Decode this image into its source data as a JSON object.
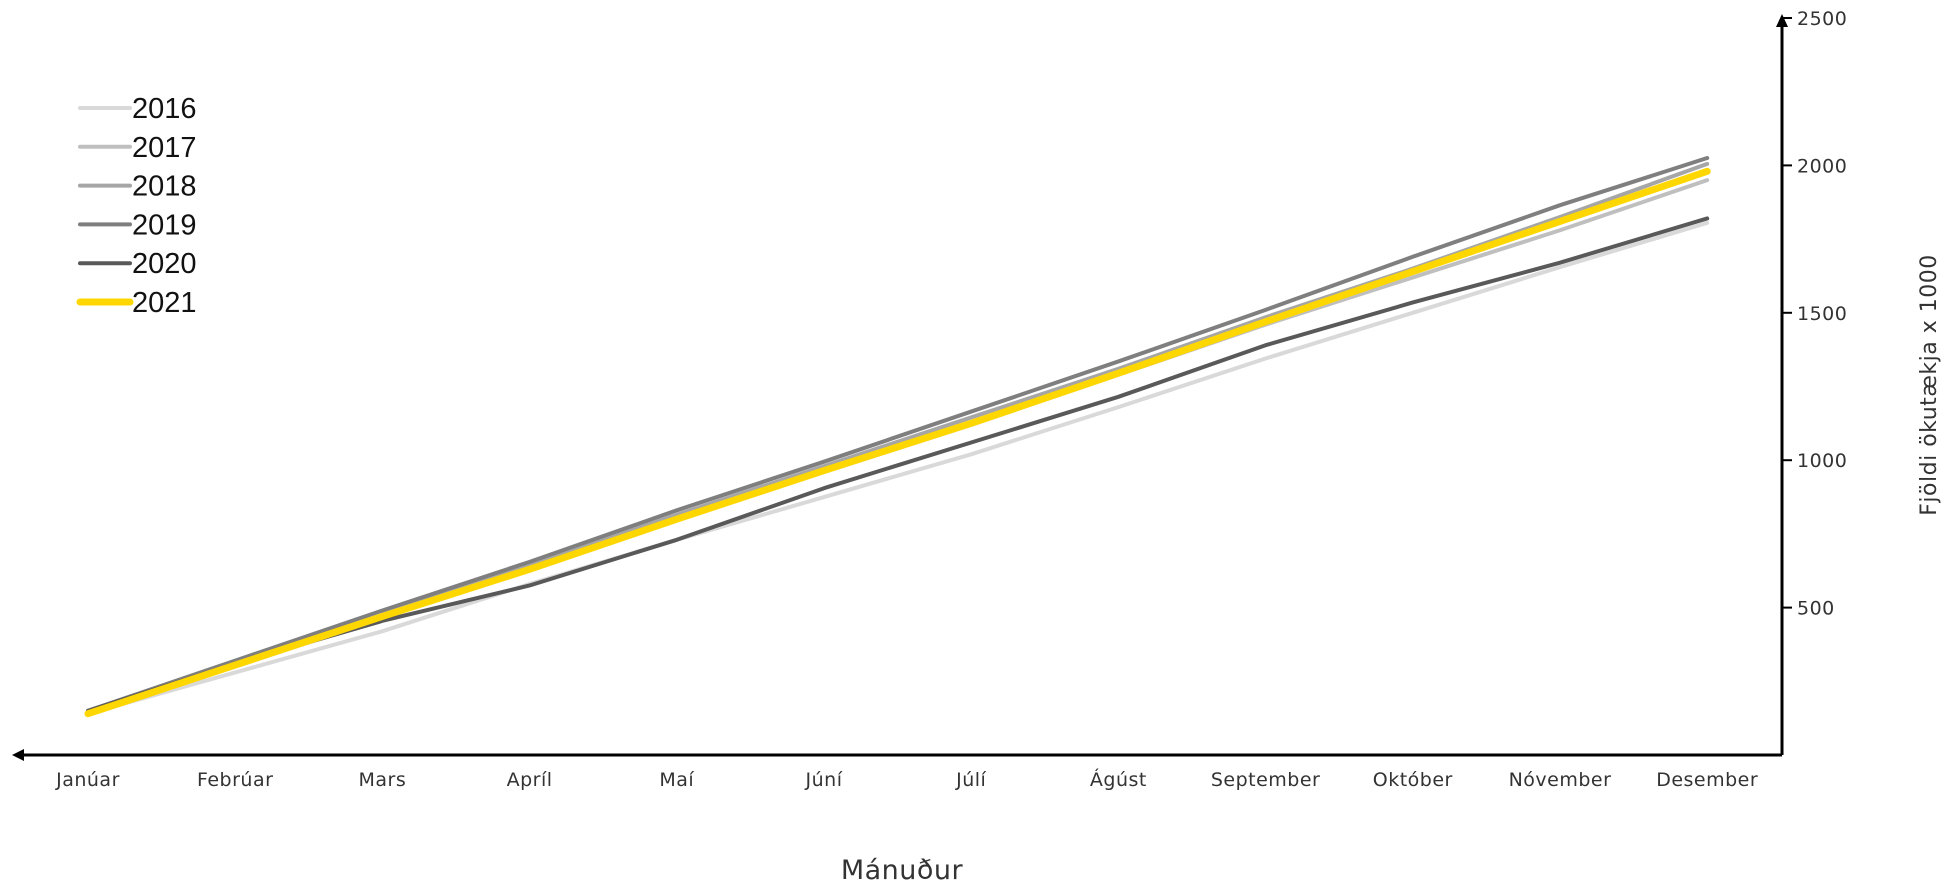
{
  "chart_data": {
    "type": "line",
    "title": "",
    "xlabel": "Mánuður",
    "ylabel": "Fjöldi ökutækja x 1000",
    "categories": [
      "Janúar",
      "Febrúar",
      "Mars",
      "Apríl",
      "Maí",
      "Júní",
      "Júlí",
      "Ágúst",
      "September",
      "Október",
      "Nóvember",
      "Desember"
    ],
    "y_ticks": [
      500,
      1000,
      1500,
      2000,
      2500
    ],
    "ylim": [
      0,
      2500
    ],
    "y_axis_side": "right",
    "grid": false,
    "legend_position": "top-left",
    "series": [
      {
        "name": "2016",
        "color": "#d9d9d9",
        "values": [
          140,
          280,
          420,
          580,
          730,
          875,
          1020,
          1180,
          1345,
          1500,
          1655,
          1805
        ]
      },
      {
        "name": "2017",
        "color": "#bfbfbf",
        "values": [
          140,
          300,
          465,
          630,
          800,
          960,
          1120,
          1290,
          1460,
          1620,
          1780,
          1950
        ]
      },
      {
        "name": "2018",
        "color": "#a6a6a6",
        "values": [
          145,
          310,
          475,
          645,
          815,
          980,
          1145,
          1310,
          1485,
          1650,
          1825,
          2005
        ]
      },
      {
        "name": "2019",
        "color": "#7f7f7f",
        "values": [
          150,
          320,
          490,
          655,
          830,
          995,
          1165,
          1335,
          1510,
          1690,
          1865,
          2025
        ]
      },
      {
        "name": "2020",
        "color": "#595959",
        "values": [
          150,
          310,
          455,
          575,
          730,
          905,
          1060,
          1215,
          1390,
          1535,
          1670,
          1820
        ]
      },
      {
        "name": "2021",
        "color": "#ffd700",
        "values": [
          140,
          305,
          470,
          630,
          800,
          965,
          1125,
          1295,
          1470,
          1640,
          1810,
          1980
        ]
      }
    ]
  }
}
